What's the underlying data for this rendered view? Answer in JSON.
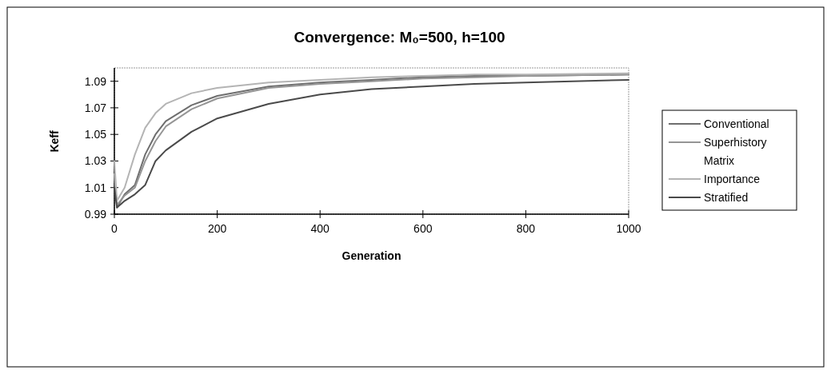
{
  "chart_data": {
    "type": "line",
    "title": "Convergence: M₀=500, h=100",
    "xlabel": "Generation",
    "ylabel": "Keff",
    "x": [
      0,
      5,
      20,
      40,
      60,
      80,
      100,
      150,
      200,
      300,
      400,
      500,
      600,
      700,
      800,
      1000
    ],
    "series": [
      {
        "name": "Conventional",
        "color": "#6e6e6e",
        "values": [
          1.02,
          0.995,
          1.005,
          1.012,
          1.035,
          1.05,
          1.06,
          1.072,
          1.079,
          1.086,
          1.089,
          1.091,
          1.093,
          1.094,
          1.094,
          1.095
        ]
      },
      {
        "name": "Superhistory",
        "color": "#959595",
        "values": [
          1.02,
          0.997,
          1.004,
          1.01,
          1.03,
          1.045,
          1.056,
          1.069,
          1.077,
          1.085,
          1.088,
          1.09,
          1.092,
          1.093,
          1.094,
          1.095
        ]
      },
      {
        "name": "Matrix",
        "values": [
          null,
          null,
          null,
          null,
          null,
          null,
          null,
          null,
          null,
          null,
          null,
          null,
          null,
          null,
          null,
          null
        ]
      },
      {
        "name": "Importance",
        "color": "#b4b4b4",
        "values": [
          1.03,
          1.0,
          1.01,
          1.035,
          1.055,
          1.066,
          1.073,
          1.081,
          1.085,
          1.089,
          1.091,
          1.093,
          1.094,
          1.095,
          1.095,
          1.096
        ]
      },
      {
        "name": "Stratified",
        "color": "#4a4a4a",
        "values": [
          1.01,
          0.995,
          1.0,
          1.005,
          1.012,
          1.03,
          1.038,
          1.052,
          1.062,
          1.073,
          1.08,
          1.084,
          1.086,
          1.088,
          1.089,
          1.091
        ]
      }
    ],
    "xlim": [
      0,
      1000
    ],
    "xticks": [
      0,
      200,
      400,
      600,
      800,
      1000
    ],
    "ylim": [
      0.99,
      1.1
    ],
    "yticks": [
      0.99,
      1.01,
      1.03,
      1.05,
      1.07,
      1.09
    ],
    "legend": "right",
    "grid": false,
    "marker": "none",
    "line_style": "solid"
  }
}
